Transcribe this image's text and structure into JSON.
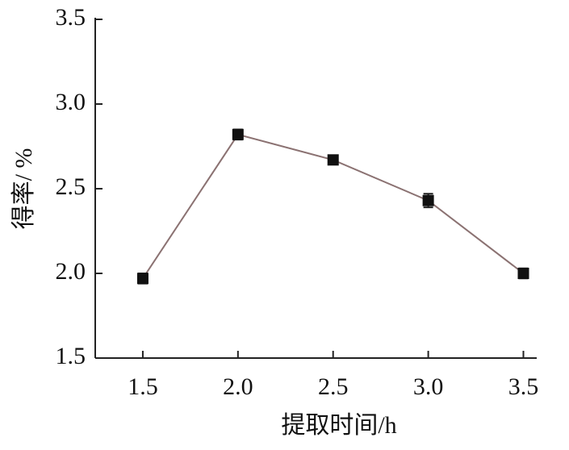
{
  "chart_data": {
    "type": "line",
    "x_label": "提取时间/h",
    "y_label": "得率/ %",
    "x": [
      1.5,
      2.0,
      2.5,
      3.0,
      3.5
    ],
    "series": [
      {
        "color": "#8b7272",
        "marker_color": "#111111",
        "values": [
          1.97,
          2.82,
          2.67,
          2.43,
          2.0
        ],
        "errors": [
          0.03,
          0.03,
          0.02,
          0.04,
          0.03
        ]
      }
    ],
    "xlim": [
      1.25,
      3.57
    ],
    "ylim": [
      1.5,
      3.5
    ],
    "xticks": [
      1.5,
      {
        "value": 2,
        "label": "2.0"
      },
      2.5,
      {
        "value": 3,
        "label": "3.0"
      },
      3.5
    ],
    "yticks": [
      1.5,
      {
        "value": 2,
        "label": "2.0"
      },
      2.5,
      {
        "value": 3,
        "label": "3.0"
      },
      3.5
    ],
    "grid": false
  }
}
